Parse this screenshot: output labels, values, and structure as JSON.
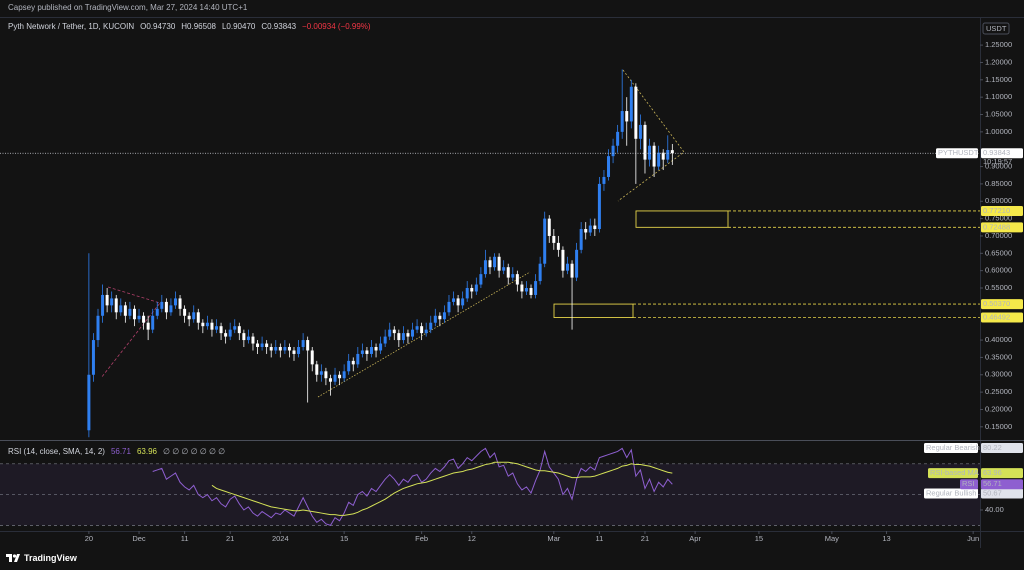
{
  "header": {
    "publisher": "Capsey published on TradingView.com, Mar 27, 2024 14:40 UTC+1"
  },
  "footer": {
    "brand": "TradingView"
  },
  "chart_data": [
    {
      "type": "candlestick",
      "title": "Pyth Network / Tether, 1D, KUCOIN",
      "status": [
        "O0.94730",
        "H0.96508",
        "L0.90470",
        "C0.93843",
        "−0.00934 (−0.99%)"
      ],
      "currency": "USDT",
      "up_color": "#2f7ff0",
      "down_color": "#ffffff",
      "grid": false,
      "xlim": [
        -19.5,
        195.5
      ],
      "xticks": [
        {
          "value": 0,
          "label": "20"
        },
        {
          "value": 11,
          "label": "Dec"
        },
        {
          "value": 21,
          "label": "11"
        },
        {
          "value": 31,
          "label": "21"
        },
        {
          "value": 42,
          "label": "2024"
        },
        {
          "value": 56,
          "label": "15"
        },
        {
          "value": 73,
          "label": "Feb"
        },
        {
          "value": 84,
          "label": "12"
        },
        {
          "value": 102,
          "label": "Mar"
        },
        {
          "value": 112,
          "label": "11"
        },
        {
          "value": 122,
          "label": "21"
        },
        {
          "value": 133,
          "label": "Apr"
        },
        {
          "value": 147,
          "label": "15"
        },
        {
          "value": 163,
          "label": "May"
        },
        {
          "value": 175,
          "label": "13"
        },
        {
          "value": 194,
          "label": "Jun"
        }
      ],
      "ylim": [
        0.112,
        1.331
      ],
      "yticks": [
        {
          "value": 1.25,
          "label": "1.25000"
        },
        {
          "value": 1.2,
          "label": "1.20000"
        },
        {
          "value": 1.15,
          "label": "1.15000"
        },
        {
          "value": 1.1,
          "label": "1.10000"
        },
        {
          "value": 1.05,
          "label": "1.05000"
        },
        {
          "value": 1.0,
          "label": "1.00000"
        },
        {
          "value": 0.9,
          "label": "0.90000"
        },
        {
          "value": 0.85,
          "label": "0.85000"
        },
        {
          "value": 0.8,
          "label": "0.80000"
        },
        {
          "value": 0.75,
          "label": "0.75000"
        },
        {
          "value": 0.7,
          "label": "0.70000"
        },
        {
          "value": 0.65,
          "label": "0.65000"
        },
        {
          "value": 0.6,
          "label": "0.60000"
        },
        {
          "value": 0.55,
          "label": "0.55000"
        },
        {
          "value": 0.4,
          "label": "0.40000"
        },
        {
          "value": 0.35,
          "label": "0.35000"
        },
        {
          "value": 0.3,
          "label": "0.30000"
        },
        {
          "value": 0.25,
          "label": "0.25000"
        },
        {
          "value": 0.2,
          "label": "0.20000"
        },
        {
          "value": 0.15,
          "label": "0.15000"
        }
      ],
      "last_price": {
        "symbol": "PYTHUSDT",
        "value": 0.93843,
        "countdown": "10:19:57"
      },
      "levels": [
        {
          "value": 0.7721,
          "label": "0.77210"
        },
        0.72488,
        {
          "value": 0.5037,
          "label": "0.50370"
        },
        0.46492
      ],
      "x": [
        0,
        1,
        2,
        3,
        4,
        5,
        6,
        7,
        8,
        9,
        10,
        11,
        12,
        13,
        14,
        15,
        16,
        17,
        18,
        19,
        20,
        21,
        22,
        23,
        24,
        25,
        26,
        27,
        28,
        29,
        30,
        31,
        32,
        33,
        34,
        35,
        36,
        37,
        38,
        39,
        40,
        41,
        42,
        43,
        44,
        45,
        46,
        47,
        48,
        49,
        50,
        51,
        52,
        53,
        54,
        55,
        56,
        57,
        58,
        59,
        60,
        61,
        62,
        63,
        64,
        65,
        66,
        67,
        68,
        69,
        70,
        71,
        72,
        73,
        74,
        75,
        76,
        77,
        78,
        79,
        80,
        81,
        82,
        83,
        84,
        85,
        86,
        87,
        88,
        89,
        90,
        91,
        92,
        93,
        94,
        95,
        96,
        97,
        98,
        99,
        100,
        101,
        102,
        103,
        104,
        105,
        106,
        107,
        108,
        109,
        110,
        111,
        112,
        113,
        114,
        115,
        116,
        117,
        118,
        119,
        120,
        121,
        122,
        123,
        124,
        125,
        126,
        127,
        128
      ],
      "open": [
        0.14,
        0.3,
        0.4,
        0.47,
        0.53,
        0.5,
        0.52,
        0.48,
        0.5,
        0.47,
        0.49,
        0.46,
        0.47,
        0.45,
        0.43,
        0.47,
        0.49,
        0.51,
        0.48,
        0.5,
        0.52,
        0.49,
        0.47,
        0.46,
        0.48,
        0.45,
        0.44,
        0.45,
        0.43,
        0.44,
        0.42,
        0.41,
        0.43,
        0.44,
        0.42,
        0.4,
        0.41,
        0.39,
        0.38,
        0.39,
        0.38,
        0.37,
        0.38,
        0.37,
        0.38,
        0.37,
        0.36,
        0.38,
        0.4,
        0.37,
        0.33,
        0.3,
        0.31,
        0.29,
        0.28,
        0.3,
        0.29,
        0.31,
        0.34,
        0.33,
        0.36,
        0.37,
        0.36,
        0.38,
        0.37,
        0.39,
        0.41,
        0.43,
        0.42,
        0.4,
        0.42,
        0.41,
        0.43,
        0.44,
        0.42,
        0.43,
        0.45,
        0.47,
        0.46,
        0.48,
        0.51,
        0.52,
        0.5,
        0.52,
        0.55,
        0.54,
        0.56,
        0.59,
        0.63,
        0.61,
        0.64,
        0.6,
        0.61,
        0.58,
        0.59,
        0.56,
        0.54,
        0.55,
        0.53,
        0.57,
        0.62,
        0.75,
        0.7,
        0.68,
        0.66,
        0.6,
        0.62,
        0.58,
        0.66,
        0.72,
        0.71,
        0.73,
        0.72,
        0.85,
        0.87,
        0.93,
        0.96,
        1.0,
        1.06,
        1.03,
        1.13,
        0.98,
        1.02,
        0.92,
        0.96,
        0.9,
        0.94,
        0.92,
        0.9473
      ],
      "high": [
        0.65,
        0.42,
        0.49,
        0.56,
        0.55,
        0.54,
        0.53,
        0.52,
        0.51,
        0.51,
        0.5,
        0.49,
        0.48,
        0.47,
        0.49,
        0.51,
        0.53,
        0.52,
        0.52,
        0.54,
        0.53,
        0.5,
        0.48,
        0.5,
        0.49,
        0.46,
        0.47,
        0.46,
        0.46,
        0.45,
        0.43,
        0.45,
        0.46,
        0.45,
        0.43,
        0.43,
        0.42,
        0.4,
        0.41,
        0.4,
        0.39,
        0.4,
        0.39,
        0.4,
        0.39,
        0.38,
        0.4,
        0.42,
        0.41,
        0.38,
        0.34,
        0.33,
        0.32,
        0.3,
        0.32,
        0.31,
        0.33,
        0.36,
        0.35,
        0.38,
        0.39,
        0.38,
        0.4,
        0.39,
        0.41,
        0.43,
        0.45,
        0.44,
        0.43,
        0.44,
        0.43,
        0.45,
        0.46,
        0.45,
        0.45,
        0.47,
        0.49,
        0.48,
        0.5,
        0.53,
        0.54,
        0.53,
        0.54,
        0.57,
        0.56,
        0.58,
        0.61,
        0.66,
        0.64,
        0.65,
        0.65,
        0.63,
        0.62,
        0.61,
        0.6,
        0.57,
        0.57,
        0.56,
        0.59,
        0.64,
        0.77,
        0.76,
        0.72,
        0.7,
        0.67,
        0.64,
        0.63,
        0.68,
        0.74,
        0.74,
        0.75,
        0.75,
        0.87,
        0.89,
        0.95,
        0.98,
        1.02,
        1.18,
        1.1,
        1.15,
        1.14,
        1.05,
        1.03,
        0.98,
        0.97,
        0.96,
        0.95,
        0.99,
        0.96508
      ],
      "low": [
        0.12,
        0.28,
        0.38,
        0.45,
        0.48,
        0.48,
        0.46,
        0.47,
        0.45,
        0.46,
        0.44,
        0.45,
        0.43,
        0.4,
        0.42,
        0.46,
        0.48,
        0.46,
        0.47,
        0.49,
        0.47,
        0.45,
        0.44,
        0.45,
        0.43,
        0.42,
        0.43,
        0.41,
        0.42,
        0.4,
        0.39,
        0.4,
        0.42,
        0.4,
        0.38,
        0.39,
        0.37,
        0.36,
        0.37,
        0.36,
        0.35,
        0.36,
        0.35,
        0.36,
        0.35,
        0.34,
        0.35,
        0.37,
        0.22,
        0.31,
        0.28,
        0.28,
        0.27,
        0.24,
        0.27,
        0.27,
        0.28,
        0.3,
        0.31,
        0.32,
        0.35,
        0.34,
        0.35,
        0.35,
        0.36,
        0.38,
        0.4,
        0.4,
        0.38,
        0.39,
        0.39,
        0.4,
        0.42,
        0.4,
        0.41,
        0.42,
        0.44,
        0.44,
        0.45,
        0.47,
        0.5,
        0.48,
        0.49,
        0.51,
        0.52,
        0.53,
        0.55,
        0.58,
        0.59,
        0.6,
        0.58,
        0.59,
        0.56,
        0.57,
        0.54,
        0.52,
        0.53,
        0.52,
        0.52,
        0.56,
        0.61,
        0.68,
        0.66,
        0.64,
        0.58,
        0.59,
        0.43,
        0.57,
        0.65,
        0.69,
        0.7,
        0.7,
        0.71,
        0.83,
        0.86,
        0.91,
        0.94,
        0.98,
        0.96,
        1.01,
        0.85,
        0.95,
        0.88,
        0.9,
        0.87,
        0.89,
        0.89,
        0.91,
        0.9047
      ],
      "close": [
        0.3,
        0.4,
        0.47,
        0.53,
        0.5,
        0.52,
        0.48,
        0.5,
        0.47,
        0.49,
        0.46,
        0.47,
        0.45,
        0.43,
        0.47,
        0.49,
        0.51,
        0.48,
        0.5,
        0.52,
        0.49,
        0.47,
        0.46,
        0.48,
        0.45,
        0.44,
        0.45,
        0.43,
        0.44,
        0.42,
        0.41,
        0.43,
        0.44,
        0.42,
        0.4,
        0.41,
        0.39,
        0.38,
        0.39,
        0.38,
        0.37,
        0.38,
        0.37,
        0.38,
        0.37,
        0.36,
        0.38,
        0.4,
        0.37,
        0.33,
        0.3,
        0.31,
        0.29,
        0.28,
        0.3,
        0.29,
        0.31,
        0.34,
        0.33,
        0.36,
        0.37,
        0.36,
        0.38,
        0.37,
        0.39,
        0.41,
        0.43,
        0.42,
        0.4,
        0.42,
        0.41,
        0.43,
        0.44,
        0.42,
        0.43,
        0.45,
        0.47,
        0.46,
        0.48,
        0.51,
        0.52,
        0.5,
        0.52,
        0.55,
        0.54,
        0.56,
        0.59,
        0.63,
        0.61,
        0.64,
        0.6,
        0.61,
        0.58,
        0.59,
        0.56,
        0.54,
        0.55,
        0.53,
        0.57,
        0.62,
        0.75,
        0.7,
        0.68,
        0.66,
        0.6,
        0.62,
        0.58,
        0.66,
        0.72,
        0.71,
        0.73,
        0.72,
        0.85,
        0.87,
        0.93,
        0.96,
        1.0,
        1.06,
        1.03,
        1.13,
        0.98,
        1.02,
        0.92,
        0.96,
        0.9,
        0.94,
        0.92,
        0.94777,
        0.93843
      ]
    },
    {
      "type": "line",
      "title": "RSI (14, close, SMA, 14, 2)",
      "extra": "∅ ∅ ∅ ∅ ∅ ∅ ∅",
      "xlim": [
        -19.5,
        195.5
      ],
      "ylim": [
        27,
        84.8
      ],
      "yticks": [
        {
          "value": 40,
          "label": "40.00"
        }
      ],
      "hlines": [
        70,
        50,
        30
      ],
      "band_color": "#7e57c2",
      "divergences": [
        {
          "name": "Regular Bearish",
          "value": 80.22
        },
        {
          "name": "Regular Bullish",
          "value": 50.67
        }
      ],
      "x": [
        0,
        1,
        2,
        3,
        4,
        5,
        6,
        7,
        8,
        9,
        10,
        11,
        12,
        13,
        14,
        15,
        16,
        17,
        18,
        19,
        20,
        21,
        22,
        23,
        24,
        25,
        26,
        27,
        28,
        29,
        30,
        31,
        32,
        33,
        34,
        35,
        36,
        37,
        38,
        39,
        40,
        41,
        42,
        43,
        44,
        45,
        46,
        47,
        48,
        49,
        50,
        51,
        52,
        53,
        54,
        55,
        56,
        57,
        58,
        59,
        60,
        61,
        62,
        63,
        64,
        65,
        66,
        67,
        68,
        69,
        70,
        71,
        72,
        73,
        74,
        75,
        76,
        77,
        78,
        79,
        80,
        81,
        82,
        83,
        84,
        85,
        86,
        87,
        88,
        89,
        90,
        91,
        92,
        93,
        94,
        95,
        96,
        97,
        98,
        99,
        100,
        101,
        102,
        103,
        104,
        105,
        106,
        107,
        108,
        109,
        110,
        111,
        112,
        113,
        114,
        115,
        116,
        117,
        118,
        119,
        120,
        121,
        122,
        123,
        124,
        125,
        126,
        127,
        128
      ],
      "series": [
        {
          "name": "RSI",
          "color": "#8e5fd0",
          "values": [
            null,
            null,
            null,
            null,
            null,
            null,
            null,
            null,
            null,
            null,
            null,
            null,
            null,
            null,
            65,
            66,
            67,
            60,
            62,
            64,
            58,
            55,
            53,
            56,
            50,
            48,
            50,
            46,
            48,
            44,
            42,
            47,
            49,
            44,
            40,
            42,
            38,
            36,
            39,
            37,
            35,
            38,
            37,
            40,
            38,
            36,
            42,
            48,
            42,
            36,
            32,
            34,
            31,
            30,
            35,
            33,
            38,
            45,
            43,
            50,
            52,
            49,
            54,
            52,
            56,
            60,
            63,
            60,
            56,
            60,
            58,
            62,
            63,
            58,
            60,
            64,
            67,
            65,
            68,
            72,
            73,
            67,
            70,
            74,
            72,
            75,
            78,
            80,
            74,
            77,
            68,
            69,
            62,
            64,
            57,
            53,
            55,
            51,
            59,
            66,
            78,
            68,
            64,
            60,
            50,
            54,
            47,
            60,
            67,
            65,
            68,
            66,
            74,
            75,
            76,
            77,
            78,
            80,
            74,
            79,
            62,
            66,
            54,
            60,
            52,
            58,
            55,
            60,
            56.71
          ]
        },
        {
          "name": "RSI-based MA",
          "color": "#d4e157",
          "values": [
            null,
            null,
            null,
            null,
            null,
            null,
            null,
            null,
            null,
            null,
            null,
            null,
            null,
            null,
            null,
            null,
            null,
            null,
            null,
            null,
            null,
            null,
            null,
            null,
            null,
            null,
            null,
            56,
            54,
            53,
            52,
            51,
            50,
            49,
            48,
            47,
            46,
            45,
            44,
            43,
            42,
            41.5,
            41,
            40.5,
            40,
            39.5,
            39.5,
            40,
            39.5,
            39,
            38.5,
            38,
            37.5,
            37,
            37,
            36.5,
            36.5,
            37,
            37.5,
            38.5,
            40,
            41,
            42.5,
            44,
            45.5,
            47,
            49,
            51,
            52.5,
            54,
            55,
            56,
            57,
            57.5,
            58,
            59,
            60,
            61,
            62,
            63,
            64,
            64.5,
            65,
            66,
            66.5,
            67.5,
            68.5,
            69.5,
            70,
            71,
            71,
            71,
            71,
            70.5,
            70,
            69,
            68,
            67,
            66,
            65.5,
            65.5,
            65,
            64.5,
            64,
            63,
            62,
            61,
            61,
            61.5,
            61.5,
            61.5,
            62,
            63,
            64,
            65,
            66,
            67,
            68.5,
            69,
            70,
            69.5,
            69.5,
            69,
            68.5,
            67.5,
            66.5,
            65.5,
            64.5,
            63.96
          ]
        }
      ]
    }
  ]
}
